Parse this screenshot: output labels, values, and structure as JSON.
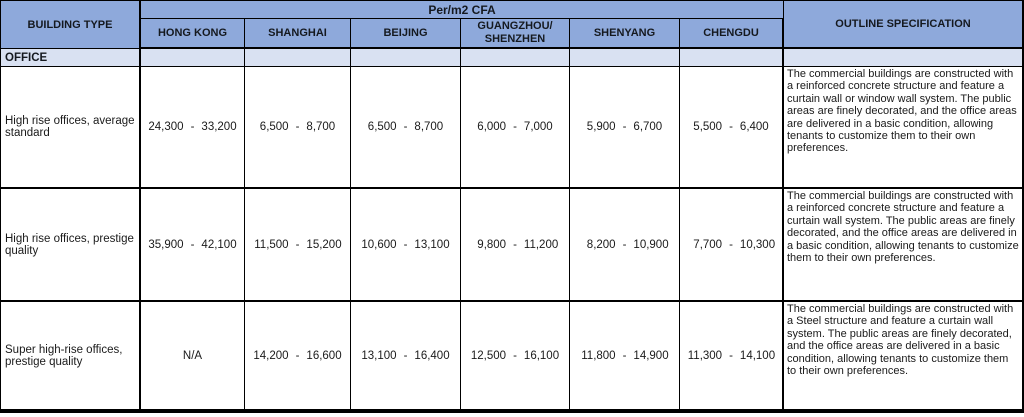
{
  "colors": {
    "header_bg": "#8ea9db",
    "section_bg": "#d9e1f2",
    "border": "#000000",
    "text": "#1a1a1a"
  },
  "table": {
    "dash": "-",
    "building_type_header": "BUILDING TYPE",
    "group_header": "Per/m2 CFA",
    "cities": [
      "HONG KONG",
      "SHANGHAI",
      "BEIJING",
      "GUANGZHOU/\nSHENZHEN",
      "SHENYANG",
      "CHENGDU"
    ],
    "spec_header": "OUTLINE SPECIFICATION",
    "section_label": "OFFICE",
    "rows": [
      {
        "type": "High rise offices, average standard",
        "values": [
          [
            "24,300",
            "33,200"
          ],
          [
            "6,500",
            "8,700"
          ],
          [
            "6,500",
            "8,700"
          ],
          [
            "6,000",
            "7,000"
          ],
          [
            "5,900",
            "6,700"
          ],
          [
            "5,500",
            "6,400"
          ]
        ],
        "spec": "The commercial buildings are constructed with a reinforced concrete structure and feature a curtain wall or window wall system. The public areas are finely decorated, and the office areas are delivered in a basic condition, allowing tenants to customize them to their own preferences."
      },
      {
        "type": "High rise offices, prestige quality",
        "values": [
          [
            "35,900",
            "42,100"
          ],
          [
            "11,500",
            "15,200"
          ],
          [
            "10,600",
            "13,100"
          ],
          [
            "9,800",
            "11,200"
          ],
          [
            "8,200",
            "10,900"
          ],
          [
            "7,700",
            "10,300"
          ]
        ],
        "spec": "The commercial buildings are constructed with a reinforced concrete structure and feature a curtain wall  system. The public areas are finely decorated, and the office areas are delivered in a basic condition, allowing tenants to customize them to their own preferences."
      },
      {
        "type": "Super high-rise offices, prestige quality",
        "values": [
          "N/A",
          [
            "14,200",
            "16,600"
          ],
          [
            "13,100",
            "16,400"
          ],
          [
            "12,500",
            "16,100"
          ],
          [
            "11,800",
            "14,900"
          ],
          [
            "11,300",
            "14,100"
          ]
        ],
        "spec": "The commercial buildings are constructed with a Steel structure and feature a curtain wall  system. The public areas are finely decorated, and the office areas are delivered in a basic condition, allowing tenants to customize them to their own preferences."
      }
    ]
  }
}
